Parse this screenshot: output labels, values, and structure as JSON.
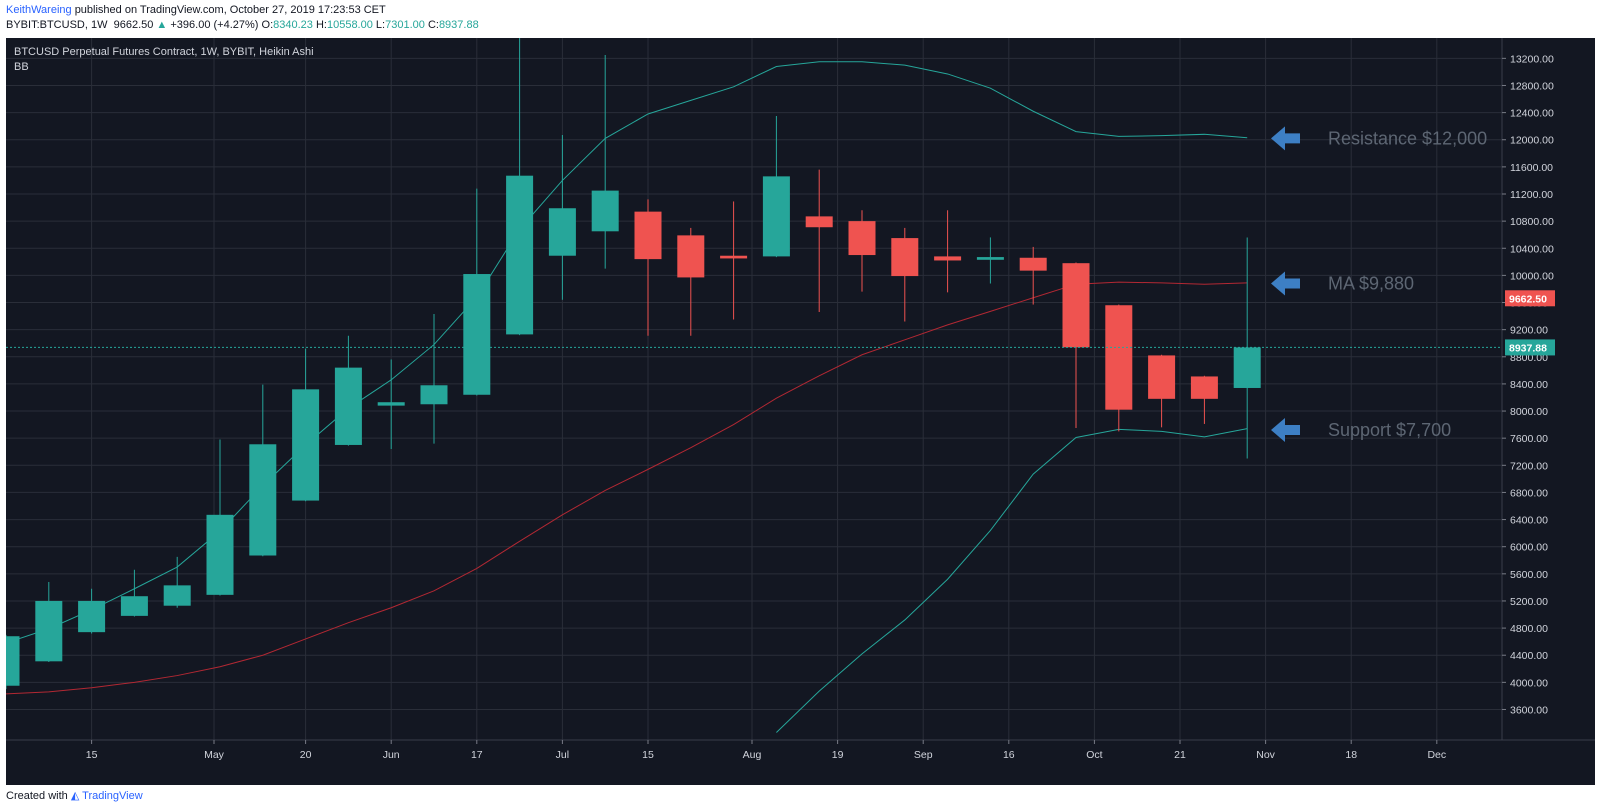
{
  "header": {
    "author": "KeithWareing",
    "published_text": "published on TradingView.com, October 27, 2019 17:23:53 CET",
    "symbol": "BYBIT:BTCUSD, 1W",
    "last": "9662.50",
    "change_arrow": "▲",
    "change": "+396.00 (+4.27%)",
    "o_label": "O:",
    "o": "8340.23",
    "h_label": "H:",
    "h": "10558.00",
    "l_label": "L:",
    "l": "7301.00",
    "c_label": "C:",
    "c": "8937.88"
  },
  "chart_meta": {
    "pane_title": "BTCUSD Perpetual Futures Contract, 1W, BYBIT, Heikin Ashi",
    "indicator_label": "BB"
  },
  "annotations": [
    {
      "text": "Resistance $12,000",
      "price": 12020,
      "icon": "arrow-left-icon"
    },
    {
      "text": "MA $9,880",
      "price": 9880,
      "icon": "arrow-left-icon"
    },
    {
      "text": "Support $7,700",
      "price": 7720,
      "icon": "arrow-left-icon"
    }
  ],
  "price_badges": [
    {
      "text": "9662.50",
      "price": 9662.5,
      "color": "#ef5350"
    },
    {
      "text": "8937.88",
      "price": 8937.88,
      "color": "#26a69a"
    }
  ],
  "colors": {
    "background": "#131722",
    "grid": "#2a2e39",
    "up": "#26a69a",
    "down": "#ef5350",
    "band": "#26a69a",
    "ma": "#b22833",
    "annotation_text": "#5d6673",
    "arrow": "#3d7fc4",
    "axis_text": "#d1d4dc"
  },
  "chart_data": {
    "type": "candlestick",
    "title": "BTCUSD Perpetual Futures Contract, 1W, BYBIT, Heikin Ashi",
    "ylim": [
      3150,
      13500
    ],
    "y_ticks": [
      3600,
      4000,
      4400,
      4800,
      5200,
      5600,
      6000,
      6400,
      6800,
      7200,
      7600,
      8000,
      8400,
      8800,
      9200,
      9600,
      10000,
      10400,
      10800,
      11200,
      11600,
      12000,
      12400,
      12800,
      13200
    ],
    "x_ticks": [
      {
        "label": "15",
        "idx": 2
      },
      {
        "label": "May",
        "idx": 4.86
      },
      {
        "label": "20",
        "idx": 7
      },
      {
        "label": "Jun",
        "idx": 9
      },
      {
        "label": "17",
        "idx": 11
      },
      {
        "label": "Jul",
        "idx": 13
      },
      {
        "label": "15",
        "idx": 15
      },
      {
        "label": "Aug",
        "idx": 17.43
      },
      {
        "label": "19",
        "idx": 19.43
      },
      {
        "label": "Sep",
        "idx": 21.43
      },
      {
        "label": "16",
        "idx": 23.43
      },
      {
        "label": "Oct",
        "idx": 25.43
      },
      {
        "label": "21",
        "idx": 27.43
      },
      {
        "label": "Nov",
        "idx": 29.43
      },
      {
        "label": "18",
        "idx": 31.43
      },
      {
        "label": "Dec",
        "idx": 33.43
      }
    ],
    "candles": [
      {
        "o": 3950,
        "h": 4700,
        "l": 3900,
        "c": 4680
      },
      {
        "o": 4310,
        "h": 5480,
        "l": 4300,
        "c": 5200
      },
      {
        "o": 4740,
        "h": 5380,
        "l": 4720,
        "c": 5200
      },
      {
        "o": 4980,
        "h": 5660,
        "l": 4970,
        "c": 5270
      },
      {
        "o": 5130,
        "h": 5850,
        "l": 5100,
        "c": 5430
      },
      {
        "o": 5290,
        "h": 7580,
        "l": 5280,
        "c": 6470
      },
      {
        "o": 5870,
        "h": 8390,
        "l": 5860,
        "c": 7510
      },
      {
        "o": 6680,
        "h": 8920,
        "l": 6670,
        "c": 8320
      },
      {
        "o": 7500,
        "h": 9110,
        "l": 7490,
        "c": 8640
      },
      {
        "o": 8080,
        "h": 8760,
        "l": 7440,
        "c": 8130
      },
      {
        "o": 8100,
        "h": 9430,
        "l": 7520,
        "c": 8380
      },
      {
        "o": 8240,
        "h": 11280,
        "l": 8230,
        "c": 10020
      },
      {
        "o": 9130,
        "h": 13500,
        "l": 9120,
        "c": 11470
      },
      {
        "o": 10290,
        "h": 12070,
        "l": 9640,
        "c": 10990
      },
      {
        "o": 10650,
        "h": 13250,
        "l": 10100,
        "c": 11250
      },
      {
        "o": 10940,
        "h": 11120,
        "l": 9110,
        "c": 10240
      },
      {
        "o": 10590,
        "h": 10700,
        "l": 9110,
        "c": 9970
      },
      {
        "o": 10290,
        "h": 11090,
        "l": 9350,
        "c": 10250
      },
      {
        "o": 10280,
        "h": 12350,
        "l": 10270,
        "c": 11460
      },
      {
        "o": 10870,
        "h": 11560,
        "l": 9460,
        "c": 10710
      },
      {
        "o": 10800,
        "h": 10960,
        "l": 9760,
        "c": 10300
      },
      {
        "o": 10550,
        "h": 10700,
        "l": 9320,
        "c": 9990
      },
      {
        "o": 10280,
        "h": 10960,
        "l": 9750,
        "c": 10220
      },
      {
        "o": 10230,
        "h": 10560,
        "l": 9880,
        "c": 10270
      },
      {
        "o": 10260,
        "h": 10420,
        "l": 9570,
        "c": 10070
      },
      {
        "o": 10180,
        "h": 10190,
        "l": 7750,
        "c": 8940
      },
      {
        "o": 9560,
        "h": 9570,
        "l": 7700,
        "c": 8020
      },
      {
        "o": 8820,
        "h": 8830,
        "l": 7760,
        "c": 8180
      },
      {
        "o": 8510,
        "h": 8520,
        "l": 7810,
        "c": 8180
      },
      {
        "o": 8340,
        "h": 10558,
        "l": 7301,
        "c": 8937.88
      }
    ],
    "bb_upper": [
      4580,
      4790,
      5070,
      5380,
      5700,
      6230,
      6900,
      7500,
      8040,
      8460,
      8980,
      9680,
      10680,
      11400,
      12020,
      12380,
      12580,
      12780,
      13080,
      13150,
      13150,
      13100,
      12970,
      12760,
      12420,
      12120,
      12050,
      12060,
      12080,
      12030
    ],
    "bb_basis": [
      3830,
      3860,
      3920,
      4000,
      4100,
      4230,
      4400,
      4640,
      4880,
      5100,
      5350,
      5680,
      6080,
      6470,
      6830,
      7140,
      7460,
      7800,
      8190,
      8520,
      8830,
      9050,
      9270,
      9470,
      9670,
      9870,
      9900,
      9890,
      9870,
      9890
    ],
    "bb_lower": [
      null,
      null,
      null,
      null,
      null,
      null,
      null,
      null,
      null,
      null,
      null,
      null,
      null,
      null,
      null,
      null,
      null,
      null,
      3260,
      3870,
      4420,
      4920,
      5520,
      6240,
      7070,
      7610,
      7730,
      7700,
      7620,
      7740
    ],
    "current_price": 8937.88
  }
}
